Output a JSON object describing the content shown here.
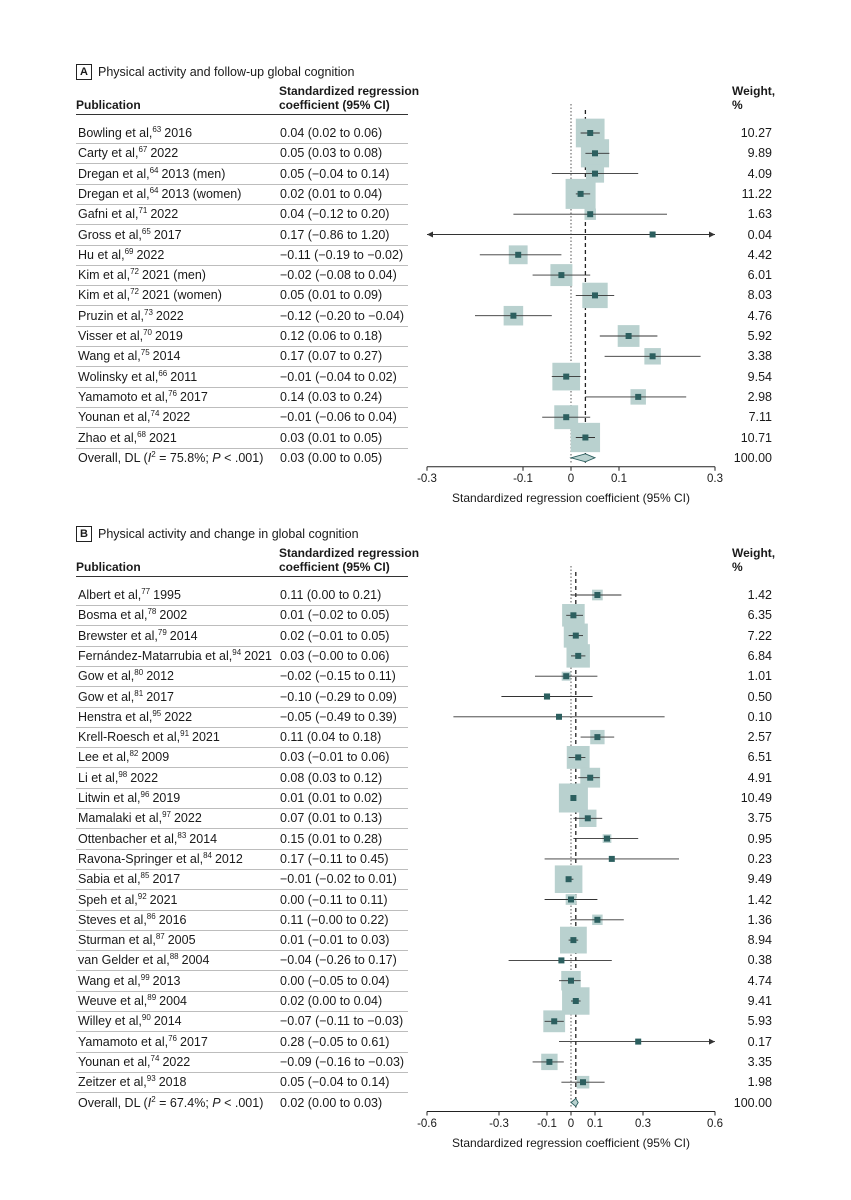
{
  "chart_data": [
    {
      "type": "forest",
      "panel_letter": "A",
      "title": "Physical activity and follow-up global cognition",
      "col_publication": "Publication",
      "col_coef_line1": "Standardized regression",
      "col_coef_line2": "coefficient (95% CI)",
      "col_weight_line1": "Weight,",
      "col_weight_line2": "%",
      "xlabel": "Standardized regression coefficient (95% CI)",
      "xlim": [
        -0.3,
        0.3
      ],
      "xticks": [
        "-0.3",
        "-0.1",
        "0",
        "0.1",
        "0.3"
      ],
      "xtick_values": [
        -0.3,
        -0.1,
        0,
        0.1,
        0.3
      ],
      "studies": [
        {
          "author": "Bowling et al,",
          "ref": "63",
          "year": "2016",
          "ci_text": "0.04 (0.02 to 0.06)",
          "est": 0.04,
          "lo": 0.02,
          "hi": 0.06,
          "weight": "10.27"
        },
        {
          "author": "Carty et al,",
          "ref": "67",
          "year": "2022",
          "ci_text": "0.05 (0.03 to 0.08)",
          "est": 0.05,
          "lo": 0.03,
          "hi": 0.08,
          "weight": "9.89"
        },
        {
          "author": "Dregan et al,",
          "ref": "64",
          "year": "2013 (men)",
          "ci_text": "0.05 (−0.04 to 0.14)",
          "est": 0.05,
          "lo": -0.04,
          "hi": 0.14,
          "weight": "4.09"
        },
        {
          "author": "Dregan et al,",
          "ref": "64",
          "year": "2013 (women)",
          "ci_text": "0.02 (0.01 to 0.04)",
          "est": 0.02,
          "lo": 0.01,
          "hi": 0.04,
          "weight": "11.22"
        },
        {
          "author": "Gafni et al,",
          "ref": "71",
          "year": "2022",
          "ci_text": "0.04 (−0.12 to 0.20)",
          "est": 0.04,
          "lo": -0.12,
          "hi": 0.2,
          "weight": "1.63"
        },
        {
          "author": "Gross et al,",
          "ref": "65",
          "year": "2017",
          "ci_text": "0.17 (−0.86 to 1.20)",
          "est": 0.17,
          "lo": -0.86,
          "hi": 1.2,
          "weight": "0.04"
        },
        {
          "author": "Hu et al,",
          "ref": "69",
          "year": "2022",
          "ci_text": "−0.11 (−0.19 to −0.02)",
          "est": -0.11,
          "lo": -0.19,
          "hi": -0.02,
          "weight": "4.42"
        },
        {
          "author": "Kim et al,",
          "ref": "72",
          "year": "2021 (men)",
          "ci_text": "−0.02 (−0.08 to 0.04)",
          "est": -0.02,
          "lo": -0.08,
          "hi": 0.04,
          "weight": "6.01"
        },
        {
          "author": "Kim et al,",
          "ref": "72",
          "year": "2021 (women)",
          "ci_text": "0.05 (0.01 to 0.09)",
          "est": 0.05,
          "lo": 0.01,
          "hi": 0.09,
          "weight": "8.03"
        },
        {
          "author": "Pruzin et al,",
          "ref": "73",
          "year": "2022",
          "ci_text": "−0.12 (−0.20 to −0.04)",
          "est": -0.12,
          "lo": -0.2,
          "hi": -0.04,
          "weight": "4.76"
        },
        {
          "author": "Visser et al,",
          "ref": "70",
          "year": "2019",
          "ci_text": "0.12 (0.06 to 0.18)",
          "est": 0.12,
          "lo": 0.06,
          "hi": 0.18,
          "weight": "5.92"
        },
        {
          "author": "Wang et al,",
          "ref": "75",
          "year": "2014",
          "ci_text": "0.17 (0.07 to 0.27)",
          "est": 0.17,
          "lo": 0.07,
          "hi": 0.27,
          "weight": "3.38"
        },
        {
          "author": "Wolinsky et al,",
          "ref": "66",
          "year": "2011",
          "ci_text": "−0.01 (−0.04 to 0.02)",
          "est": -0.01,
          "lo": -0.04,
          "hi": 0.02,
          "weight": "9.54"
        },
        {
          "author": "Yamamoto et al,",
          "ref": "76",
          "year": "2017",
          "ci_text": "0.14 (0.03 to 0.24)",
          "est": 0.14,
          "lo": 0.03,
          "hi": 0.24,
          "weight": "2.98"
        },
        {
          "author": "Younan et al,",
          "ref": "74",
          "year": "2022",
          "ci_text": "−0.01 (−0.06 to 0.04)",
          "est": -0.01,
          "lo": -0.06,
          "hi": 0.04,
          "weight": "7.11"
        },
        {
          "author": "Zhao et al,",
          "ref": "68",
          "year": "2021",
          "ci_text": "0.03 (0.01 to 0.05)",
          "est": 0.03,
          "lo": 0.01,
          "hi": 0.05,
          "weight": "10.71"
        }
      ],
      "overall": {
        "label_prefix": "Overall, DL (",
        "i2_sym": "I",
        "i2_rest": " = 75.8%; ",
        "p_sym": "P",
        "p_rest": " < .001)",
        "ci_text": "0.03 (0.00 to 0.05)",
        "est": 0.03,
        "lo": 0.0,
        "hi": 0.05,
        "weight": "100.00"
      }
    },
    {
      "type": "forest",
      "panel_letter": "B",
      "title": "Physical activity and change in global cognition",
      "col_publication": "Publication",
      "col_coef_line1": "Standardized regression",
      "col_coef_line2": "coefficient (95% CI)",
      "col_weight_line1": "Weight,",
      "col_weight_line2": "%",
      "xlabel": "Standardized regression coefficient (95% CI)",
      "xlim": [
        -0.6,
        0.6
      ],
      "xticks": [
        "-0.6",
        "-0.3",
        "-0.1",
        "0",
        "0.1",
        "0.3",
        "0.6"
      ],
      "xtick_values": [
        -0.6,
        -0.3,
        -0.1,
        0,
        0.1,
        0.3,
        0.6
      ],
      "studies": [
        {
          "author": "Albert et al,",
          "ref": "77",
          "year": "1995",
          "ci_text": "0.11 (0.00 to 0.21)",
          "est": 0.11,
          "lo": 0.0,
          "hi": 0.21,
          "weight": "1.42"
        },
        {
          "author": "Bosma et al,",
          "ref": "78",
          "year": "2002",
          "ci_text": "0.01 (−0.02 to 0.05)",
          "est": 0.01,
          "lo": -0.02,
          "hi": 0.05,
          "weight": "6.35"
        },
        {
          "author": "Brewster et al,",
          "ref": "79",
          "year": "2014",
          "ci_text": "0.02 (−0.01 to 0.05)",
          "est": 0.02,
          "lo": -0.01,
          "hi": 0.05,
          "weight": "7.22"
        },
        {
          "author": "Fernández-Matarrubia et al,",
          "ref": "94",
          "year": "2021",
          "ci_text": "0.03 (−0.00 to 0.06)",
          "est": 0.03,
          "lo": -0.0,
          "hi": 0.06,
          "weight": "6.84"
        },
        {
          "author": "Gow et al,",
          "ref": "80",
          "year": "2012",
          "ci_text": "−0.02 (−0.15 to 0.11)",
          "est": -0.02,
          "lo": -0.15,
          "hi": 0.11,
          "weight": "1.01"
        },
        {
          "author": "Gow et al,",
          "ref": "81",
          "year": "2017",
          "ci_text": "−0.10 (−0.29 to 0.09)",
          "est": -0.1,
          "lo": -0.29,
          "hi": 0.09,
          "weight": "0.50"
        },
        {
          "author": "Henstra et al,",
          "ref": "95",
          "year": "2022",
          "ci_text": "−0.05 (−0.49 to 0.39)",
          "est": -0.05,
          "lo": -0.49,
          "hi": 0.39,
          "weight": "0.10"
        },
        {
          "author": "Krell-Roesch et al,",
          "ref": "91",
          "year": "2021",
          "ci_text": "0.11 (0.04 to 0.18)",
          "est": 0.11,
          "lo": 0.04,
          "hi": 0.18,
          "weight": "2.57"
        },
        {
          "author": "Lee et al,",
          "ref": "82",
          "year": "2009",
          "ci_text": "0.03 (−0.01 to 0.06)",
          "est": 0.03,
          "lo": -0.01,
          "hi": 0.06,
          "weight": "6.51"
        },
        {
          "author": "Li et al,",
          "ref": "98",
          "year": "2022",
          "ci_text": "0.08 (0.03 to 0.12)",
          "est": 0.08,
          "lo": 0.03,
          "hi": 0.12,
          "weight": "4.91"
        },
        {
          "author": "Litwin et al,",
          "ref": "96",
          "year": "2019",
          "ci_text": "0.01 (0.01 to 0.02)",
          "est": 0.01,
          "lo": 0.01,
          "hi": 0.02,
          "weight": "10.49"
        },
        {
          "author": "Mamalaki et al,",
          "ref": "97",
          "year": "2022",
          "ci_text": "0.07 (0.01 to 0.13)",
          "est": 0.07,
          "lo": 0.01,
          "hi": 0.13,
          "weight": "3.75"
        },
        {
          "author": "Ottenbacher et al,",
          "ref": "83",
          "year": "2014",
          "ci_text": "0.15 (0.01 to 0.28)",
          "est": 0.15,
          "lo": 0.01,
          "hi": 0.28,
          "weight": "0.95"
        },
        {
          "author": "Ravona-Springer et al,",
          "ref": "84",
          "year": "2012",
          "ci_text": "0.17 (−0.11 to 0.45)",
          "est": 0.17,
          "lo": -0.11,
          "hi": 0.45,
          "weight": "0.23"
        },
        {
          "author": "Sabia et al,",
          "ref": "85",
          "year": "2017",
          "ci_text": "−0.01 (−0.02 to 0.01)",
          "est": -0.01,
          "lo": -0.02,
          "hi": 0.01,
          "weight": "9.49"
        },
        {
          "author": "Speh et al,",
          "ref": "92",
          "year": "2021",
          "ci_text": "0.00 (−0.11 to 0.11)",
          "est": 0.0,
          "lo": -0.11,
          "hi": 0.11,
          "weight": "1.42"
        },
        {
          "author": "Steves et al,",
          "ref": "86",
          "year": "2016",
          "ci_text": "0.11 (−0.00 to 0.22)",
          "est": 0.11,
          "lo": -0.0,
          "hi": 0.22,
          "weight": "1.36"
        },
        {
          "author": "Sturman et al,",
          "ref": "87",
          "year": "2005",
          "ci_text": "0.01 (−0.01 to 0.03)",
          "est": 0.01,
          "lo": -0.01,
          "hi": 0.03,
          "weight": "8.94"
        },
        {
          "author": "van Gelder et al,",
          "ref": "88",
          "year": "2004",
          "ci_text": "−0.04 (−0.26 to 0.17)",
          "est": -0.04,
          "lo": -0.26,
          "hi": 0.17,
          "weight": "0.38"
        },
        {
          "author": "Wang et al,",
          "ref": "99",
          "year": "2013",
          "ci_text": "0.00 (−0.05 to 0.04)",
          "est": 0.0,
          "lo": -0.05,
          "hi": 0.04,
          "weight": "4.74"
        },
        {
          "author": "Weuve et al,",
          "ref": "89",
          "year": "2004",
          "ci_text": "0.02 (0.00 to 0.04)",
          "est": 0.02,
          "lo": 0.0,
          "hi": 0.04,
          "weight": "9.41"
        },
        {
          "author": "Willey et al,",
          "ref": "90",
          "year": "2014",
          "ci_text": "−0.07 (−0.11 to −0.03)",
          "est": -0.07,
          "lo": -0.11,
          "hi": -0.03,
          "weight": "5.93"
        },
        {
          "author": "Yamamoto et al,",
          "ref": "76",
          "year": "2017",
          "ci_text": "0.28 (−0.05 to 0.61)",
          "est": 0.28,
          "lo": -0.05,
          "hi": 0.61,
          "weight": "0.17"
        },
        {
          "author": "Younan et al,",
          "ref": "74",
          "year": "2022",
          "ci_text": "−0.09 (−0.16 to −0.03)",
          "est": -0.09,
          "lo": -0.16,
          "hi": -0.03,
          "weight": "3.35"
        },
        {
          "author": "Zeitzer et al,",
          "ref": "93",
          "year": "2018",
          "ci_text": "0.05 (−0.04 to 0.14)",
          "est": 0.05,
          "lo": -0.04,
          "hi": 0.14,
          "weight": "1.98"
        }
      ],
      "overall": {
        "label_prefix": "Overall, DL (",
        "i2_sym": "I",
        "i2_rest": " = 67.4%; ",
        "p_sym": "P",
        "p_rest": " < .001)",
        "ci_text": "0.02 (0.00 to 0.03)",
        "est": 0.02,
        "lo": 0.0,
        "hi": 0.03,
        "weight": "100.00"
      }
    }
  ],
  "colors": {
    "marker": "#2c5f5f",
    "weight_box": "#b9d1cf",
    "diamond_fill": "#b9d1cf",
    "diamond_stroke": "#2c5f5f",
    "line": "#333333",
    "rule": "#bdbdbd"
  }
}
